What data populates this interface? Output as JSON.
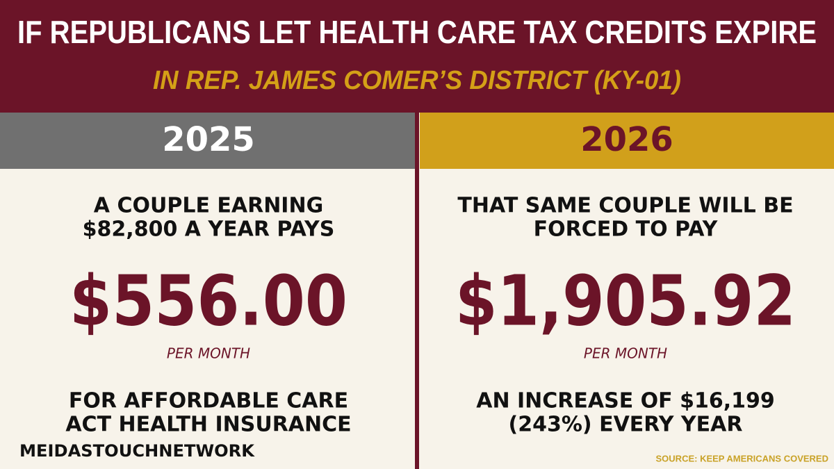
{
  "header": {
    "title": "IF REPUBLICANS LET HEALTH CARE TAX CREDITS EXPIRE",
    "subtitle": "IN REP. JAMES COMER’S DISTRICT (KY-01)"
  },
  "columns": [
    {
      "year": "2025",
      "lines_top": [
        "A COUPLE EARNING",
        "$82,800 A YEAR PAYS"
      ],
      "amount": "$556.00",
      "per": "PER MONTH",
      "lines_bottom": [
        "FOR AFFORDABLE CARE",
        "ACT HEALTH INSURANCE"
      ]
    },
    {
      "year": "2026",
      "lines_top": [
        "THAT SAME COUPLE WILL BE",
        "FORCED TO PAY"
      ],
      "amount": "$1,905.92",
      "per": "PER MONTH",
      "lines_bottom": [
        "AN INCREASE OF $16,199",
        "(243%) EVERY YEAR"
      ]
    }
  ],
  "footer": {
    "logo": "MEIDASTOUCHNETWORK",
    "source": "SOURCE: KEEP AMERICANS COVERED"
  }
}
